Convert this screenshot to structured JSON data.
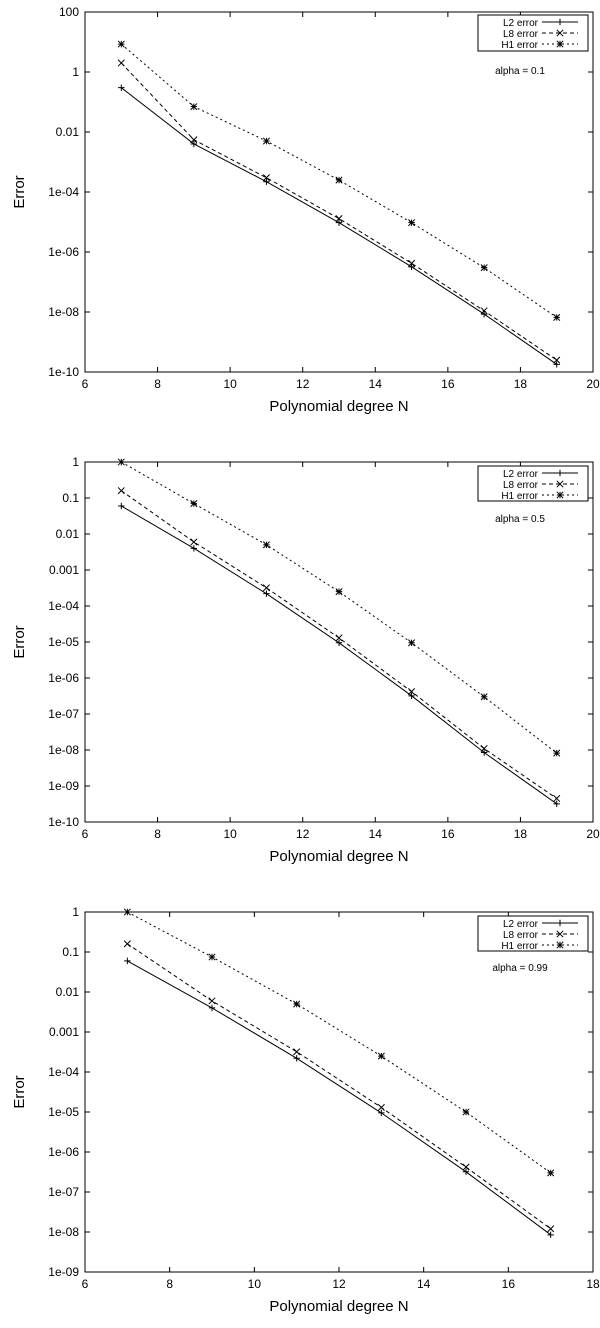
{
  "chart_data": [
    {
      "type": "line",
      "xlabel": "Polynomial degree N",
      "ylabel": "Error",
      "yscale": "log",
      "xlim": [
        6,
        20
      ],
      "ylim": [
        1e-10,
        100
      ],
      "xticks": [
        "6",
        "8",
        "10",
        "12",
        "14",
        "16",
        "18",
        "20"
      ],
      "yticks": [
        "1e-10",
        "1e-08",
        "1e-06",
        "1e-04",
        "0.01",
        "1",
        "100"
      ],
      "legend_position": "top-right",
      "annotation": "alpha = 0.1",
      "x": [
        7,
        9,
        11,
        13,
        15,
        17,
        19
      ],
      "series": [
        {
          "name": "L2 error",
          "marker": "plus",
          "dash": "solid",
          "values": [
            0.3,
            0.004,
            0.00022,
            9.5e-06,
            3.2e-07,
            8.5e-09,
            1.8e-10
          ]
        },
        {
          "name": "L8 error",
          "marker": "x",
          "dash": "dashed",
          "values": [
            2.0,
            0.0055,
            0.0003,
            1.3e-05,
            4.2e-07,
            1.1e-08,
            2.5e-10
          ]
        },
        {
          "name": "H1 error",
          "marker": "star",
          "dash": "dotted",
          "values": [
            8.5,
            0.07,
            0.005,
            0.00025,
            9.5e-06,
            3e-07,
            6.6e-09
          ]
        }
      ]
    },
    {
      "type": "line",
      "xlabel": "Polynomial degree N",
      "ylabel": "Error",
      "yscale": "log",
      "xlim": [
        6,
        20
      ],
      "ylim": [
        1e-10,
        1
      ],
      "xticks": [
        "6",
        "8",
        "10",
        "12",
        "14",
        "16",
        "18",
        "20"
      ],
      "yticks": [
        "1e-10",
        "1e-09",
        "1e-08",
        "1e-07",
        "1e-06",
        "1e-05",
        "1e-04",
        "0.001",
        "0.01",
        "0.1",
        "1"
      ],
      "legend_position": "top-right",
      "annotation": "alpha = 0.5",
      "x": [
        7,
        9,
        11,
        13,
        15,
        17,
        19
      ],
      "series": [
        {
          "name": "L2 error",
          "marker": "plus",
          "dash": "solid",
          "values": [
            0.06,
            0.004,
            0.00022,
            9.5e-06,
            3.2e-07,
            8.5e-09,
            3.2e-10
          ]
        },
        {
          "name": "L8 error",
          "marker": "x",
          "dash": "dashed",
          "values": [
            0.16,
            0.006,
            0.00032,
            1.3e-05,
            4.2e-07,
            1.1e-08,
            4.5e-10
          ]
        },
        {
          "name": "H1 error",
          "marker": "star",
          "dash": "dotted",
          "values": [
            1.0,
            0.07,
            0.005,
            0.00025,
            9.5e-06,
            3e-07,
            8.2e-09
          ]
        }
      ]
    },
    {
      "type": "line",
      "xlabel": "Polynomial degree N",
      "ylabel": "Error",
      "yscale": "log",
      "xlim": [
        6,
        18
      ],
      "ylim": [
        1e-09,
        1
      ],
      "xticks": [
        "6",
        "8",
        "10",
        "12",
        "14",
        "16",
        "18"
      ],
      "yticks": [
        "1e-09",
        "1e-08",
        "1e-07",
        "1e-06",
        "1e-05",
        "1e-04",
        "0.001",
        "0.01",
        "0.1",
        "1"
      ],
      "legend_position": "top-right",
      "annotation": "alpha = 0.99",
      "x": [
        7,
        9,
        11,
        13,
        15,
        17
      ],
      "series": [
        {
          "name": "L2 error",
          "marker": "plus",
          "dash": "solid",
          "values": [
            0.06,
            0.004,
            0.00022,
            9.5e-06,
            3.2e-07,
            8.5e-09
          ]
        },
        {
          "name": "L8 error",
          "marker": "x",
          "dash": "dashed",
          "values": [
            0.16,
            0.006,
            0.00032,
            1.3e-05,
            4.2e-07,
            1.2e-08
          ]
        },
        {
          "name": "H1 error",
          "marker": "star",
          "dash": "dotted",
          "values": [
            1.0,
            0.075,
            0.005,
            0.00025,
            1e-05,
            3e-07
          ]
        }
      ]
    }
  ]
}
